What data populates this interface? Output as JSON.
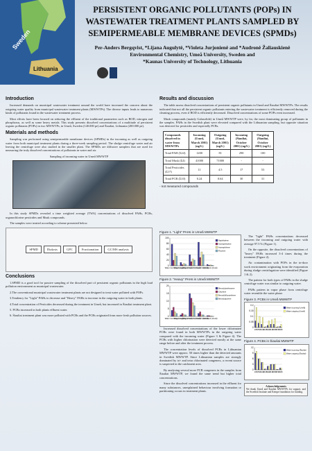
{
  "header": {
    "title": "PERSISTENT ORGANIC POLLUTANTS (POPs) IN WASTEWATER TREATMENT PLANTS SAMPLED BY SEMIPERMEABLE MEMBRANE DEVICES (SPMDs)",
    "authors": "Per-Anders Bergqvist, *Lijana Augulytė, *Violeta Jurjonienė and *Audronė Žaliauskienė",
    "affiliation1": "Environmental Chemistry, Umeå University, Sweden and",
    "affiliation2": "*Kaunas University of Technology, Lithuania",
    "map_labels": [
      "Sweden",
      "Lithuania"
    ]
  },
  "introduction": {
    "heading": "Introduction",
    "paragraphs": [
      "Increased demands on municipal wastewater treatment around the world have increased the concern about the outgoing water quality from municipal wastewater treatment plants (MWWTPs). The diverse inputs leads to numerous kinds of pollutants found in the wastewater treatment process.",
      "Most efforts have been focused on reducing the effluent of the traditional parameters such as BOD, nitrogen and phosphorus, as well as some heavy metals. This study presents dissolved concentrations of a multitude of persistent organic pollutants (POPs) in two MWWTPs, in Umeå, Sweden (140.000 pe) and Šiauliai, Lithuania (200.000 pe)."
    ]
  },
  "methods": {
    "heading": "Materials and methods",
    "paragraphs": [
      "Sampling was performed using semipermeable membrane devices (SPMDs) in the incoming as well as outgoing water from both municipal treatment plants during a three-week sampling period. The sludge centrifuge water and air leaving the centrifuge were also studied in the smaller plant. The SPMDs are diffusive samplers that are used for measuring the truly dissolved concentrations of pollutants in water and air."
    ],
    "photo_caption": "Sampling of incoming water in Umeå MWWTP",
    "after_photo": [
      "In this study SPMDs revealed a time weighted average (TWA) concentrations of dissolved PAHs, PCBs, organochlorine pesticides and Musk compounds.",
      "The samples were treated according to scheme presented below."
    ],
    "scheme_labels": [
      "SPMD",
      "Dialysis",
      "GPC",
      "Fractionation",
      "GC/MS analysis"
    ]
  },
  "conclusions": {
    "heading": "Conclusions",
    "items": [
      "1.SPMD is a good tool for passive sampling of the dissolved part of persistent organic pollutants in the high load pollution environment as municipal wastewater.",
      "2.The conventional municipal wastewater treatment plants are not designed to treat water polluted with POPs.",
      "3.Tendency for \"Light\" PAHs to decrease and \"Heavy\" PAHs to increase in the outgoing water in both plants.",
      "4.Total concentration of Pesticides decreased during the treatment in Umeå, but increased in Šiauliai treatment plant.",
      "5. PCBs increased in both plants effluent water.",
      "6. Šiauliai treatment plant was more polluted with PCBs and the PCBs originated from more fresh pollution sources."
    ]
  },
  "results": {
    "heading": "Results and discussion",
    "paragraphs": [
      "The table assess dissolved concentrations of persistent organic pollutants in Umeå and Šiauliai MWWTPs. The results indicated that not all the persistent organic pollutants entering the wastewater treatment is efficiently removed during the cleaning process, even if BOD is efficiently decreased. Dissolved concentrations of some POPs even increased.",
      "Musk compounds (mainly Galaxolide) in Umeå MWWTP were, by far, the most dominating group of pollutants in the samples. PAHs in the Swedish plant were elevated compared with the Lithuanian sampling, but opposite situation was detected for pesticides and especially PCBs."
    ],
    "table": {
      "header": [
        "Compounds dissolved in water from MWWTPs",
        "Incoming (Umeå, March 2001) (ng/L)",
        "Outgoing (Umeå, March 2001) (ng/L)",
        "Incoming (Šiauliai, October 2001) (ng/L)",
        "Outgoing (Šiauliai, October 2001) (ng/L)"
      ],
      "rows": [
        [
          "Total PAH (Σ24)",
          "1200",
          "81",
          "290",
          "100"
        ],
        [
          "Total Musk (Σ4)",
          "41000",
          "71000",
          "-",
          "-"
        ],
        [
          "Total Pesticides (Σ17)",
          "11",
          "4.5",
          "17",
          "53"
        ],
        [
          "Total PCB (Σ10)",
          "0.24",
          "0.64",
          "30",
          "31"
        ]
      ]
    },
    "table_note": "- not measured compounds",
    "figures": [
      {
        "type": "bar",
        "title": "Figure 1. \"Light\" PAHs in Umeå MWWTP",
        "categories": [
          "Water incoming (Umeå)",
          "Water outgoing (Umeå)",
          "Water Centrif. (Umeå)",
          "Air Centrif. (Umeå)",
          "Field blank (Umeå)"
        ],
        "series": [
          {
            "name": "Naphthalene",
            "color": "#3d3d99",
            "values": [
              78,
              12,
              40,
              85,
              5
            ]
          },
          {
            "name": "Acenaphthylene",
            "color": "#993366",
            "values": [
              20,
              4,
              15,
              30,
              2
            ]
          },
          {
            "name": "Acenaphthene",
            "color": "#e8e0a0",
            "values": [
              45,
              8,
              25,
              50,
              3
            ]
          },
          {
            "name": "Fluorene",
            "color": "#7fb0c8",
            "values": [
              35,
              6,
              20,
              40,
              2
            ]
          }
        ],
        "ylim": [
          0,
          100
        ],
        "yticks": [
          0,
          20,
          40,
          60,
          80,
          100
        ]
      },
      {
        "type": "bar",
        "title": "Figure 2. \"Heavy\" PAHs in Umeå MWWTP",
        "categories": [
          "Water incoming (Umeå)",
          "Water outgoing (Umeå)",
          "Water Centrif. (Umeå)",
          "Air Centrif. (Umeå)",
          "Field blank (Umeå)"
        ],
        "series": [
          {
            "name": "Benzo(a)anthracene",
            "color": "#3d3d99",
            "values": [
              4,
              1,
              15,
              2,
              0.5
            ]
          },
          {
            "name": "Chrysene",
            "color": "#993366",
            "values": [
              6,
              2,
              12,
              3,
              0.5
            ]
          },
          {
            "name": "Benzo(b)fluoranthene",
            "color": "#e8e0a0",
            "values": [
              3,
              1,
              9,
              1,
              0.3
            ]
          },
          {
            "name": "Benzo(a)pyrene",
            "color": "#7fb0c8",
            "values": [
              2,
              1,
              7,
              1,
              0.2
            ]
          }
        ],
        "ylim": [
          0,
          20
        ],
        "yticks": [
          0,
          5,
          10,
          15,
          20
        ]
      },
      {
        "type": "bar",
        "title": "Figure 3. PCBs in Umeå MWWTP",
        "categories": [
          "#28",
          "#52",
          "#101",
          "#105",
          "#118",
          "#138",
          "#153",
          "#156",
          "#180"
        ],
        "series": [
          {
            "name": "Water incoming (Umeå)",
            "color": "#333399",
            "values": [
              0.06,
              0.04,
              0.03,
              0.005,
              0.02,
              0.03,
              0.03,
              0.004,
              0.01
            ]
          },
          {
            "name": "Water outgoing (Umeå)",
            "color": "#ffff99",
            "values": [
              0.18,
              0.1,
              0.09,
              0.01,
              0.06,
              0.07,
              0.08,
              0.01,
              0.03
            ]
          }
        ],
        "ylim": [
          0,
          0.2
        ],
        "yticks": [
          0,
          0.05,
          0.1,
          0.15,
          0.2
        ]
      },
      {
        "type": "bar",
        "title": "Figure 4. PCBs in Šiauliai MWWTP",
        "categories": [
          "#28",
          "#52",
          "#101",
          "#105",
          "#118",
          "#138",
          "#153",
          "#156",
          "#180"
        ],
        "series": [
          {
            "name": "Water incoming (Šiauliai)",
            "color": "#333399",
            "values": [
              9,
              6,
              4,
              0.5,
              2,
              3,
              3,
              0.3,
              1
            ]
          },
          {
            "name": "Water outgoing (Šiauliai)",
            "color": "#ffff99",
            "values": [
              10,
              6,
              4,
              0.6,
              2,
              3,
              3,
              0.3,
              1
            ]
          }
        ],
        "ylim": [
          0,
          12
        ],
        "yticks": [
          0,
          3,
          6,
          9,
          12
        ]
      }
    ],
    "side_text": [
      "The \"light\" PAHs concentrations decreased between the incoming and outgoing water with average 97.5 % (Figure 1).",
      "On the opposite, the dissolved concentrations of \"heavy\" PAHs increased 3-4 times during the treatment (Figure 2).",
      "Air contamination with POPs in the in-door work environment originating from the evaporation during sludge centrifugation were identified (Figure 1 & 2).",
      "The pattern for both types of PAHs in the sludge centrifuge water was similar to outgoing water.",
      "PAHs pattern in vapor phase from centrifuge water resemble the water phase."
    ],
    "bottom_text": [
      "Increased dissolved concentrations of the lower chlorinated PCBs were found in both MWWTPs in the outgoing water compared with the incoming water (Figure 3 & Figure 4). The PCBs with higher chlorination were detected mostly at the same range before and after the treatment process.",
      "The concentration levels of dissolved PCBs in Lithuanian MWWTP were approx. 50 times higher than the detected amounts in Swedish MWWTP. Since Lithuanian samples are strongly dominated by tri- and tetra chlorinated congeners, a recent source is suspected in the catchment area.",
      "By analysing several more PCB congeners in the samples from Šiauliai MWWTP, we found the same trend but higher total concentrations.",
      "Since the dissolved concentrations increased in the effluent for many substances, unexplained behaviour involving formation or partitioning occurs in treatment plants."
    ]
  },
  "acknowledgements": {
    "heading": "Acknowledgements",
    "text": "We thank Umeå and Šiauliai MWWTPs for support, and the Swedish Institute and Kempe foundation for funding."
  }
}
